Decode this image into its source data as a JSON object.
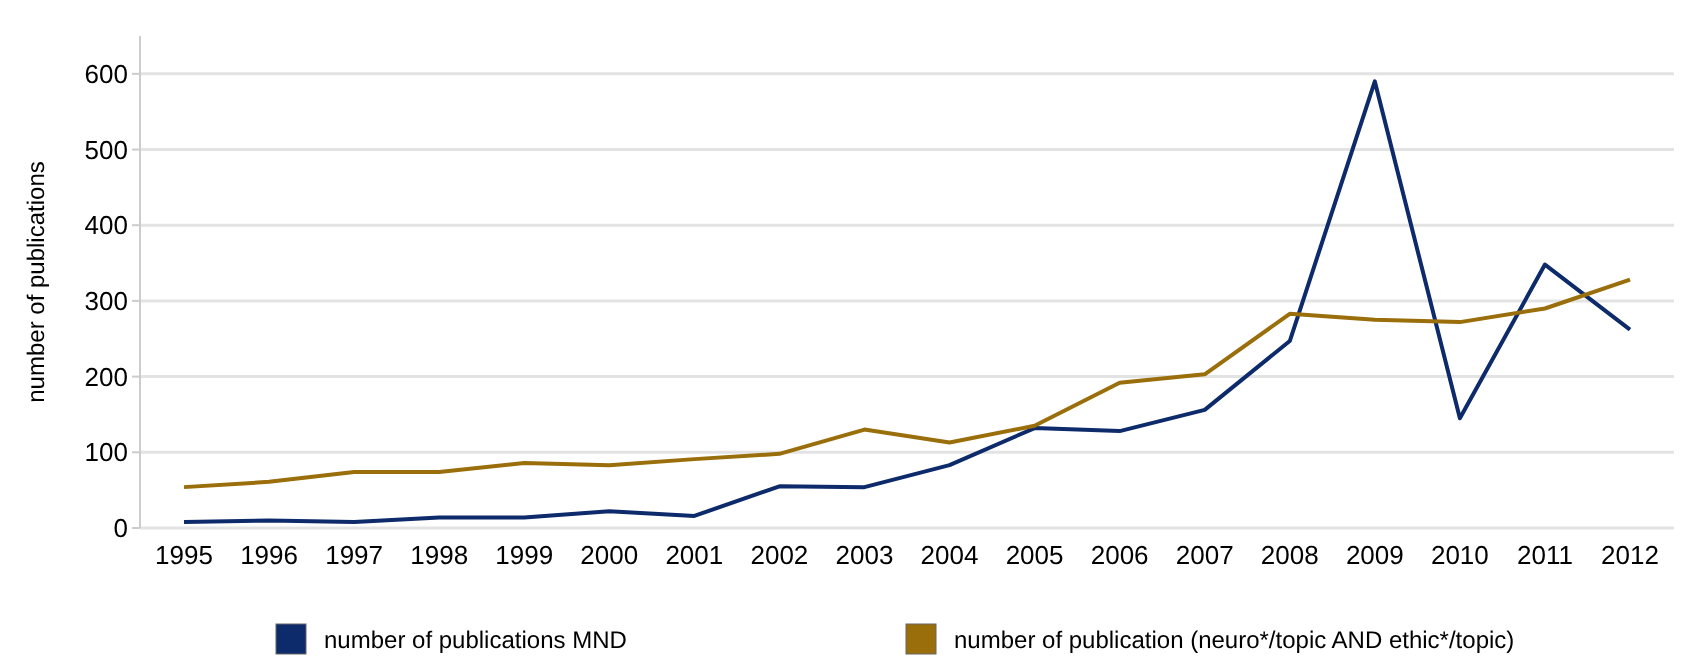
{
  "chart_data": {
    "type": "line",
    "ylabel": "number of publications",
    "categories": [
      "1995",
      "1996",
      "1997",
      "1998",
      "1999",
      "2000",
      "2001",
      "2002",
      "2003",
      "2004",
      "2005",
      "2006",
      "2007",
      "2008",
      "2009",
      "2010",
      "2011",
      "2012"
    ],
    "series": [
      {
        "name": "number of publications MND",
        "color": "#0d2a6b",
        "values": [
          8,
          10,
          8,
          14,
          14,
          22,
          16,
          55,
          54,
          83,
          132,
          128,
          156,
          247,
          590,
          145,
          348,
          262
        ]
      },
      {
        "name": "number of publication (neuro*/topic AND ethic*/topic)",
        "color": "#9a6e0b",
        "values": [
          54,
          61,
          74,
          74,
          86,
          83,
          91,
          98,
          130,
          113,
          135,
          192,
          203,
          283,
          275,
          272,
          290,
          328
        ]
      }
    ],
    "ylim": [
      0,
      650
    ],
    "yticks": [
      0,
      100,
      200,
      300,
      400,
      500,
      600
    ],
    "grid": "y",
    "legend": "bottom",
    "marker": "none",
    "line_style": "solid"
  }
}
